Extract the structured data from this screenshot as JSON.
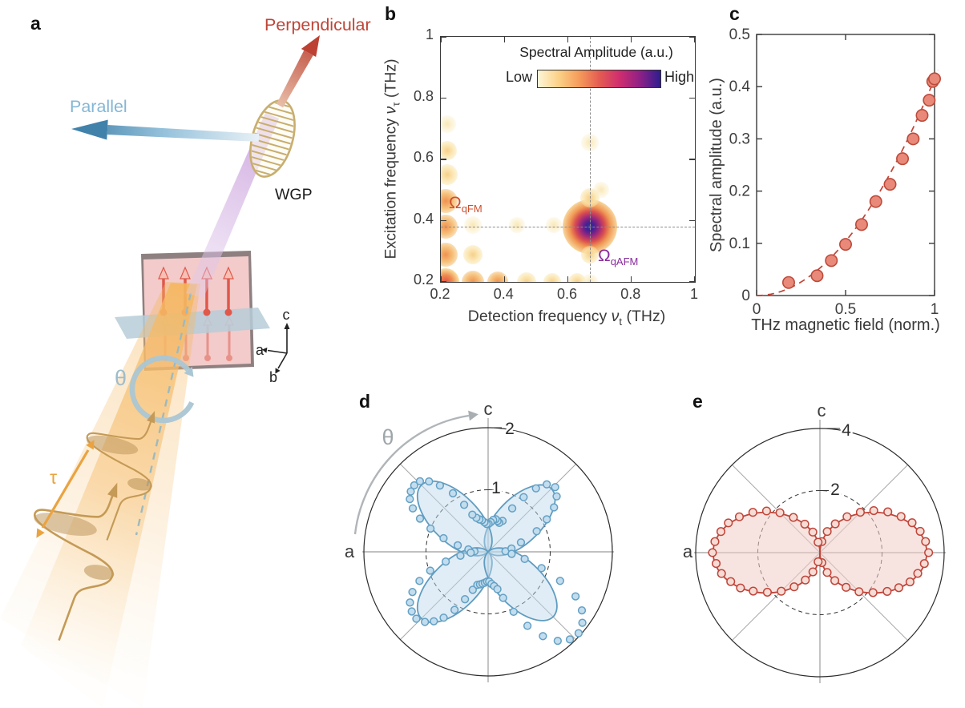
{
  "figure": {
    "background": "#ffffff",
    "panels": {
      "a": "a",
      "b": "b",
      "c": "c",
      "d": "d",
      "e": "e"
    }
  },
  "panel_a": {
    "labels": {
      "perpendicular": "Perpendicular",
      "parallel": "Parallel",
      "wgp": "WGP",
      "theta": "θ",
      "tau": "τ",
      "axis_a": "a",
      "axis_b": "b",
      "axis_c": "c"
    },
    "colors": {
      "perpendicular_red": "#bf4538",
      "parallel_blue": "#84b7d5",
      "wgp_gold": "#c8ae6e",
      "violet_beam": "#d3b3e0",
      "orange_beam": "#f6bd67",
      "spin_red": "#e0584a",
      "plane_blue": "#b7cdd8",
      "theta_blue": "#9ebccb",
      "tau_orange": "#eaa340",
      "sample_pink": "#f2cbca"
    }
  },
  "chart_data": [
    {
      "id": "b",
      "type": "heatmap",
      "xlabel_prefix": "Detection frequency",
      "xlabel_sym": "ν",
      "xlabel_sub": "t",
      "xlabel_unit": "(THz)",
      "ylabel_prefix": "Excitation frequency",
      "ylabel_sym": "ν",
      "ylabel_sub": "τ",
      "ylabel_unit": "(THz)",
      "xlim": [
        0.2,
        1
      ],
      "ylim": [
        0.2,
        1
      ],
      "xticks": [
        "0.2",
        "0.4",
        "0.6",
        "0.8",
        "1"
      ],
      "yticks": [
        "0.2",
        "0.4",
        "0.6",
        "0.8",
        "1"
      ],
      "colorbar": {
        "title": "Spectral Amplitude (a.u.)",
        "low_label": "Low",
        "high_label": "High",
        "stops": [
          "#fdf6d8",
          "#fbd289",
          "#f59d5b",
          "#e45c52",
          "#cf2d6f",
          "#8e2086",
          "#2d1e8f"
        ]
      },
      "crosshair": {
        "x": 0.67,
        "y": 0.38
      },
      "annotations": [
        {
          "sym": "Ω",
          "sub": "qFM",
          "color": "#cf4f2e",
          "x": 0.235,
          "y": 0.45
        },
        {
          "sym": "Ω",
          "sub": "qAFM",
          "color": "#8a2b9d",
          "x": 0.7,
          "y": 0.27
        }
      ],
      "peaks": [
        {
          "x": 0.67,
          "y": 0.38,
          "i": 1.0,
          "r": 34
        },
        {
          "x": 0.215,
          "y": 0.2,
          "i": 0.85,
          "r": 17
        },
        {
          "x": 0.215,
          "y": 0.29,
          "i": 0.62,
          "r": 15
        },
        {
          "x": 0.215,
          "y": 0.38,
          "i": 0.55,
          "r": 15
        },
        {
          "x": 0.215,
          "y": 0.465,
          "i": 0.47,
          "r": 15
        },
        {
          "x": 0.22,
          "y": 0.55,
          "i": 0.3,
          "r": 13
        },
        {
          "x": 0.22,
          "y": 0.63,
          "i": 0.22,
          "r": 12
        },
        {
          "x": 0.22,
          "y": 0.715,
          "i": 0.15,
          "r": 11
        },
        {
          "x": 0.3,
          "y": 0.2,
          "i": 0.5,
          "r": 14
        },
        {
          "x": 0.3,
          "y": 0.29,
          "i": 0.3,
          "r": 12
        },
        {
          "x": 0.3,
          "y": 0.385,
          "i": 0.2,
          "r": 11
        },
        {
          "x": 0.38,
          "y": 0.2,
          "i": 0.45,
          "r": 13
        },
        {
          "x": 0.44,
          "y": 0.385,
          "i": 0.15,
          "r": 10
        },
        {
          "x": 0.47,
          "y": 0.2,
          "i": 0.32,
          "r": 12
        },
        {
          "x": 0.55,
          "y": 0.2,
          "i": 0.25,
          "r": 11
        },
        {
          "x": 0.555,
          "y": 0.385,
          "i": 0.18,
          "r": 10
        },
        {
          "x": 0.63,
          "y": 0.2,
          "i": 0.22,
          "r": 11
        },
        {
          "x": 0.67,
          "y": 0.2,
          "i": 0.2,
          "r": 10
        },
        {
          "x": 0.67,
          "y": 0.29,
          "i": 0.28,
          "r": 11
        },
        {
          "x": 0.67,
          "y": 0.475,
          "i": 0.32,
          "r": 12
        },
        {
          "x": 0.705,
          "y": 0.5,
          "i": 0.15,
          "r": 10
        },
        {
          "x": 0.67,
          "y": 0.655,
          "i": 0.2,
          "r": 11
        }
      ]
    },
    {
      "id": "c",
      "type": "scatter",
      "xlabel": "THz magnetic field (norm.)",
      "ylabel": "Spectral amplitude (a.u.)",
      "xlim": [
        0,
        1
      ],
      "ylim": [
        0,
        0.5
      ],
      "xticks": [
        "0",
        "0.5",
        "1"
      ],
      "yticks": [
        "0",
        "0.1",
        "0.2",
        "0.3",
        "0.4",
        "0.5"
      ],
      "x": [
        0.18,
        0.34,
        0.42,
        0.5,
        0.59,
        0.67,
        0.75,
        0.82,
        0.88,
        0.93,
        0.97,
        0.99,
        1.0
      ],
      "y": [
        0.025,
        0.038,
        0.067,
        0.098,
        0.136,
        0.18,
        0.213,
        0.262,
        0.3,
        0.345,
        0.374,
        0.41,
        0.415
      ],
      "fit": {
        "type": "quadratic",
        "coeff": 0.415,
        "style": "dashed"
      },
      "marker_fill": "#e8897a",
      "marker_stroke": "#bd4a3a",
      "fit_color": "#c44335"
    },
    {
      "id": "d",
      "type": "polar",
      "r_outer": 2,
      "r_inner": 1,
      "outer_tick_label": "2",
      "inner_tick_label": "1",
      "axis_top": "c",
      "axis_left": "a",
      "theta_label": "θ",
      "curve": {
        "kind": "petal-ellipses",
        "petals": [
          {
            "angle": 45,
            "dist": 0.72,
            "ry": 0.36
          },
          {
            "angle": 135,
            "dist": 0.76,
            "ry": 0.38
          },
          {
            "angle": 225,
            "dist": 0.76,
            "ry": 0.38
          },
          {
            "angle": 315,
            "dist": 0.74,
            "ry": 0.37
          }
        ]
      },
      "line_color": "#5f9cc0",
      "fill_color": "rgba(187,216,235,0.45)",
      "marker_fill": "#c3ddee",
      "marker_stroke": "#63a0c4",
      "marker_r": 4.4,
      "points": [
        [
          2,
          0.28
        ],
        [
          8,
          0.38
        ],
        [
          16,
          0.55
        ],
        [
          23,
          0.85
        ],
        [
          29,
          1.08
        ],
        [
          34,
          1.28
        ],
        [
          39,
          1.42
        ],
        [
          44,
          1.5
        ],
        [
          49,
          1.44
        ],
        [
          53,
          1.28
        ],
        [
          57,
          1.05
        ],
        [
          61,
          0.8
        ],
        [
          65,
          0.55
        ],
        [
          69,
          0.5
        ],
        [
          73,
          0.52
        ],
        [
          77,
          0.54
        ],
        [
          81,
          0.52
        ],
        [
          85,
          0.48
        ],
        [
          89,
          0.45
        ],
        [
          93,
          0.45
        ],
        [
          97,
          0.48
        ],
        [
          101,
          0.52
        ],
        [
          105,
          0.54
        ],
        [
          109,
          0.58
        ],
        [
          113,
          0.65
        ],
        [
          117,
          0.85
        ],
        [
          121,
          1.1
        ],
        [
          126,
          1.32
        ],
        [
          130,
          1.48
        ],
        [
          134,
          1.58
        ],
        [
          138,
          1.6
        ],
        [
          142,
          1.58
        ],
        [
          146,
          1.52
        ],
        [
          150,
          1.4
        ],
        [
          154,
          1.22
        ],
        [
          158,
          1.0
        ],
        [
          163,
          0.75
        ],
        [
          168,
          0.5
        ],
        [
          173,
          0.32
        ],
        [
          178,
          0.22
        ],
        [
          183,
          0.28
        ],
        [
          188,
          0.45
        ],
        [
          193,
          0.7
        ],
        [
          198,
          0.98
        ],
        [
          203,
          1.2
        ],
        [
          208,
          1.38
        ],
        [
          213,
          1.5
        ],
        [
          218,
          1.56
        ],
        [
          223,
          1.58
        ],
        [
          228,
          1.52
        ],
        [
          232,
          1.42
        ],
        [
          236,
          1.28
        ],
        [
          240,
          1.08
        ],
        [
          244,
          0.85
        ],
        [
          248,
          0.66
        ],
        [
          252,
          0.56
        ],
        [
          256,
          0.54
        ],
        [
          260,
          0.52
        ],
        [
          264,
          0.5
        ],
        [
          268,
          0.48
        ],
        [
          272,
          0.48
        ],
        [
          276,
          0.52
        ],
        [
          280,
          0.56
        ],
        [
          284,
          0.62
        ],
        [
          288,
          0.78
        ],
        [
          293,
          1.05
        ],
        [
          298,
          1.35
        ],
        [
          303,
          1.62
        ],
        [
          308,
          1.82
        ],
        [
          313,
          1.93
        ],
        [
          318,
          1.96
        ],
        [
          323,
          1.9
        ],
        [
          328,
          1.78
        ],
        [
          333,
          1.58
        ],
        [
          338,
          1.25
        ],
        [
          343,
          0.9
        ],
        [
          349,
          0.6
        ],
        [
          355,
          0.38
        ]
      ]
    },
    {
      "id": "e",
      "type": "polar",
      "r_outer": 4,
      "r_inner": 2,
      "outer_tick_label": "4",
      "inner_tick_label": "2",
      "axis_top": "c",
      "axis_left": "a",
      "theta_label": "",
      "curve": {
        "kind": "petal-ellipses",
        "petals": [
          {
            "angle": 0,
            "dist": 1.72,
            "ry": 1.3
          },
          {
            "angle": 180,
            "dist": 1.72,
            "ry": 1.3
          }
        ]
      },
      "line_color": "#c0453a",
      "fill_color": "rgba(240,205,198,0.55)",
      "marker_fill": "#f6dcd4",
      "marker_stroke": "#c0453a",
      "marker_r": 4.8,
      "points": [
        [
          0,
          3.5
        ],
        [
          6,
          3.42
        ],
        [
          -6,
          3.38
        ],
        [
          12,
          3.3
        ],
        [
          -12,
          3.22
        ],
        [
          18,
          3.12
        ],
        [
          -18,
          3.05
        ],
        [
          24,
          2.86
        ],
        [
          -24,
          2.78
        ],
        [
          31,
          2.55
        ],
        [
          -30,
          2.5
        ],
        [
          38,
          2.2
        ],
        [
          -37,
          2.14
        ],
        [
          45,
          1.84
        ],
        [
          -45,
          1.78
        ],
        [
          53,
          1.45
        ],
        [
          -53,
          1.4
        ],
        [
          62,
          1.05
        ],
        [
          -62,
          1.02
        ],
        [
          71,
          0.72
        ],
        [
          -70,
          0.68
        ],
        [
          80,
          0.36
        ],
        [
          -79,
          0.33
        ],
        [
          180,
          3.46
        ],
        [
          174,
          3.4
        ],
        [
          186,
          3.36
        ],
        [
          168,
          3.26
        ],
        [
          192,
          3.24
        ],
        [
          162,
          3.1
        ],
        [
          198,
          3.02
        ],
        [
          156,
          2.84
        ],
        [
          204,
          2.8
        ],
        [
          149,
          2.52
        ],
        [
          210,
          2.48
        ],
        [
          142,
          2.18
        ],
        [
          217,
          2.12
        ],
        [
          135,
          1.82
        ],
        [
          225,
          1.76
        ],
        [
          127,
          1.42
        ],
        [
          233,
          1.38
        ],
        [
          118,
          1.04
        ],
        [
          242,
          1.0
        ],
        [
          109,
          0.7
        ],
        [
          250,
          0.66
        ],
        [
          100,
          0.34
        ],
        [
          259,
          0.3
        ]
      ]
    }
  ]
}
